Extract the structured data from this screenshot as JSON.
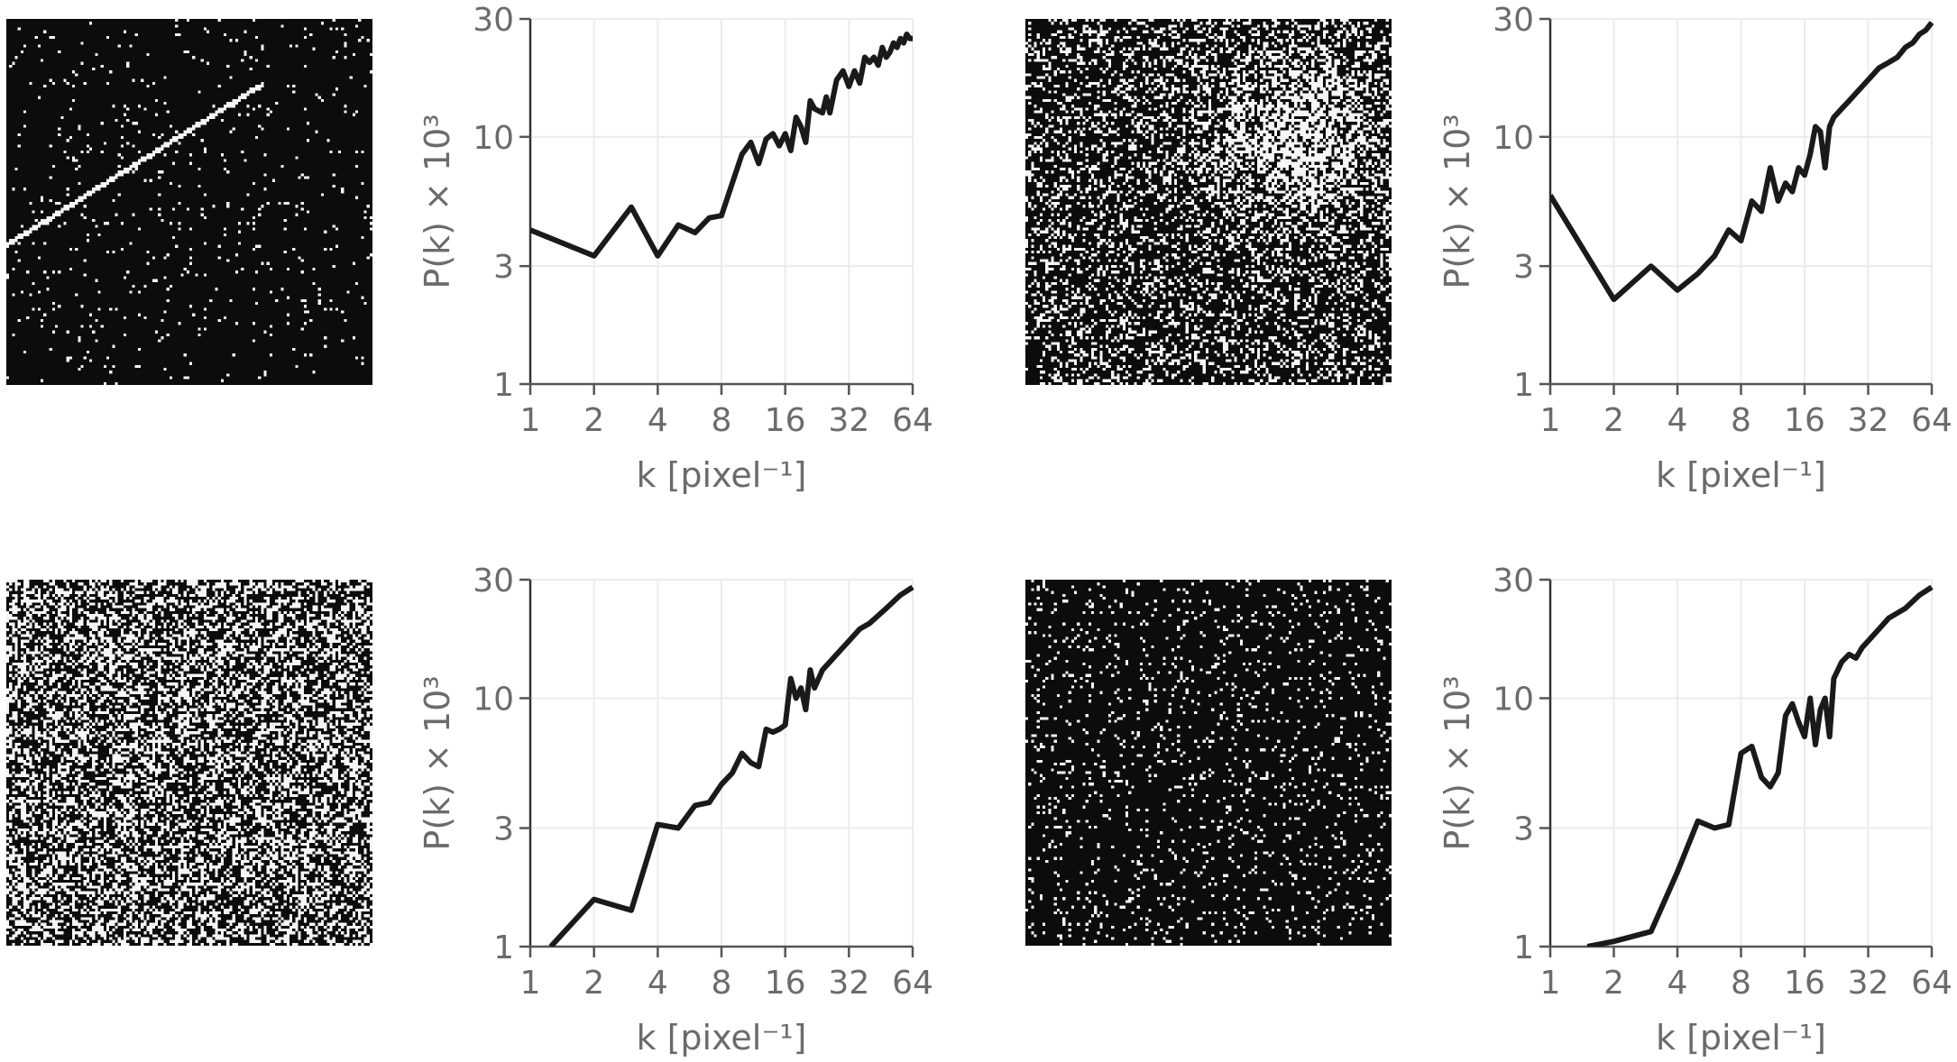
{
  "chart_data": [
    {
      "type": "line",
      "panel": "top-left",
      "xlabel": "k [pixel⁻¹]",
      "ylabel": "P(k) × 10³",
      "xscale": "log2",
      "yscale": "log",
      "xlim": [
        1,
        64
      ],
      "ylim": [
        1,
        30
      ],
      "xticks": [
        "1",
        "2",
        "4",
        "8",
        "16",
        "32",
        "64"
      ],
      "yticks": [
        "1",
        "3",
        "10",
        "30"
      ],
      "grid": true,
      "line_color": "#1a1a1a",
      "x": [
        1,
        2,
        3,
        4,
        5,
        6,
        7,
        8,
        9,
        10,
        11,
        12,
        13,
        14,
        15,
        16,
        17,
        18,
        19,
        20,
        21,
        22,
        24,
        25,
        26,
        28,
        30,
        32,
        34,
        36,
        38,
        40,
        42,
        44,
        46,
        48,
        50,
        52,
        54,
        56,
        58,
        60,
        62,
        64
      ],
      "y": [
        4.2,
        3.3,
        5.2,
        3.3,
        4.4,
        4.1,
        4.7,
        4.8,
        6.5,
        8.5,
        9.5,
        7.8,
        9.8,
        10.3,
        9.2,
        10.3,
        8.8,
        12,
        11,
        9.5,
        14,
        13,
        12.5,
        14.5,
        12.5,
        17,
        18.5,
        16,
        18.5,
        16.5,
        21,
        20,
        21,
        19.5,
        23,
        21,
        22,
        24,
        23,
        25,
        24,
        26,
        25,
        25
      ],
      "image": "sparse-stars-with-streak"
    },
    {
      "type": "line",
      "panel": "top-right",
      "xlabel": "k [pixel⁻¹]",
      "ylabel": "P(k) × 10³",
      "xscale": "log2",
      "yscale": "log",
      "xlim": [
        1,
        64
      ],
      "ylim": [
        1,
        30
      ],
      "xticks": [
        "1",
        "2",
        "4",
        "8",
        "16",
        "32",
        "64"
      ],
      "yticks": [
        "1",
        "3",
        "10",
        "30"
      ],
      "grid": true,
      "line_color": "#1a1a1a",
      "x": [
        1,
        2,
        3,
        4,
        5,
        6,
        7,
        8,
        9,
        10,
        11,
        12,
        13,
        14,
        15,
        16,
        17,
        18,
        19,
        20,
        21,
        22,
        24,
        26,
        28,
        30,
        32,
        34,
        36,
        40,
        44,
        48,
        52,
        56,
        60,
        64
      ],
      "y": [
        5.8,
        2.2,
        3.0,
        2.4,
        2.8,
        3.3,
        4.2,
        3.8,
        5.5,
        5.0,
        7.5,
        5.5,
        6.5,
        6.0,
        7.5,
        7.0,
        8.5,
        11,
        10.5,
        7.5,
        11,
        12,
        13,
        14,
        15,
        16,
        17,
        18,
        19,
        20,
        21,
        23,
        24,
        26,
        27,
        29
      ],
      "image": "noise-with-bright-cloud"
    },
    {
      "type": "line",
      "panel": "bottom-left",
      "xlabel": "k [pixel⁻¹]",
      "ylabel": "P(k) × 10³",
      "xscale": "log2",
      "yscale": "log",
      "xlim": [
        1,
        64
      ],
      "ylim": [
        1,
        30
      ],
      "xticks": [
        "1",
        "2",
        "4",
        "8",
        "16",
        "32",
        "64"
      ],
      "yticks": [
        "1",
        "3",
        "10",
        "30"
      ],
      "grid": true,
      "line_color": "#1a1a1a",
      "x": [
        1.25,
        2,
        3,
        4,
        5,
        6,
        7,
        8,
        9,
        10,
        11,
        12,
        13,
        14,
        15,
        16,
        17,
        18,
        19,
        20,
        21,
        22,
        24,
        26,
        28,
        32,
        36,
        40,
        48,
        56,
        64
      ],
      "y": [
        1.0,
        1.55,
        1.4,
        3.1,
        3.0,
        3.7,
        3.8,
        4.5,
        5.0,
        6.0,
        5.5,
        5.3,
        7.5,
        7.3,
        7.5,
        7.8,
        12,
        10,
        11,
        9,
        13,
        11,
        13,
        14,
        15,
        17,
        19,
        20,
        23,
        26,
        28
      ],
      "image": "dense-noise"
    },
    {
      "type": "line",
      "panel": "bottom-right",
      "xlabel": "k [pixel⁻¹]",
      "ylabel": "P(k) × 10³",
      "xscale": "log2",
      "yscale": "log",
      "xlim": [
        1,
        64
      ],
      "ylim": [
        1,
        30
      ],
      "xticks": [
        "1",
        "2",
        "4",
        "8",
        "16",
        "32",
        "64"
      ],
      "yticks": [
        "1",
        "3",
        "10",
        "30"
      ],
      "grid": true,
      "line_color": "#1a1a1a",
      "x": [
        1.5,
        2,
        3,
        4,
        5,
        6,
        7,
        8,
        9,
        10,
        11,
        12,
        13,
        14,
        15,
        16,
        17,
        18,
        19,
        20,
        21,
        22,
        24,
        26,
        28,
        30,
        32,
        36,
        40,
        48,
        56,
        64
      ],
      "y": [
        1.0,
        1.05,
        1.15,
        2.0,
        3.2,
        3.0,
        3.1,
        6.0,
        6.4,
        4.8,
        4.4,
        5.0,
        8.5,
        9.5,
        8.0,
        7.0,
        10,
        6.5,
        9,
        10,
        7,
        12,
        14,
        15,
        14.5,
        16,
        17,
        19,
        21,
        23,
        26,
        28
      ],
      "image": "sparse-dots"
    }
  ]
}
